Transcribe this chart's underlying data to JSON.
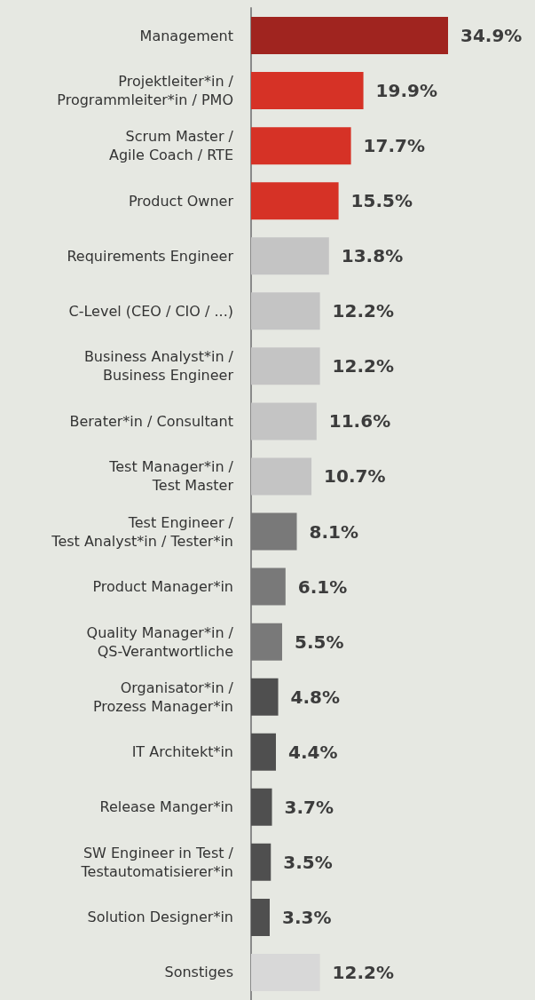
{
  "chart_data": {
    "type": "bar",
    "orientation": "horizontal",
    "tick_labels": "y",
    "grid": false,
    "categories": [
      "Management",
      "Projektleiter*in /\nProgrammleiter*in / PMO",
      "Scrum Master /\nAgile Coach / RTE",
      "Product Owner",
      "Requirements Engineer",
      "C-Level (CEO / CIO / ...)",
      "Business Analyst*in /\nBusiness Engineer",
      "Berater*in / Consultant",
      "Test Manager*in /\nTest Master",
      "Test Engineer /\nTest Analyst*in / Tester*in",
      "Product Manager*in",
      "Quality Manager*in /\nQS-Verantwortliche",
      "Organisator*in /\nProzess Manager*in",
      "IT Architekt*in",
      "Release Manger*in",
      "SW Engineer in Test /\nTestautomatisierer*in",
      "Solution Designer*in",
      "Sonstiges"
    ],
    "values": [
      34.9,
      19.9,
      17.7,
      15.5,
      13.8,
      12.2,
      12.2,
      11.6,
      10.7,
      8.1,
      6.1,
      5.5,
      4.8,
      4.4,
      3.7,
      3.5,
      3.3,
      12.2
    ],
    "value_labels": [
      "34.9%",
      "19.9%",
      "17.7%",
      "15.5%",
      "13.8%",
      "12.2%",
      "12.2%",
      "11.6%",
      "10.7%",
      "8.1%",
      "6.1%",
      "5.5%",
      "4.8%",
      "4.4%",
      "3.7%",
      "3.5%",
      "3.3%",
      "12.2%"
    ],
    "colors": [
      "#a0241f",
      "#d63226",
      "#d63226",
      "#d63226",
      "#c4c4c4",
      "#c4c4c4",
      "#c4c4c4",
      "#c4c4c4",
      "#c4c4c4",
      "#797979",
      "#797979",
      "#797979",
      "#4f4f4f",
      "#4f4f4f",
      "#4f4f4f",
      "#4f4f4f",
      "#4f4f4f",
      "#d8d8d8"
    ]
  }
}
